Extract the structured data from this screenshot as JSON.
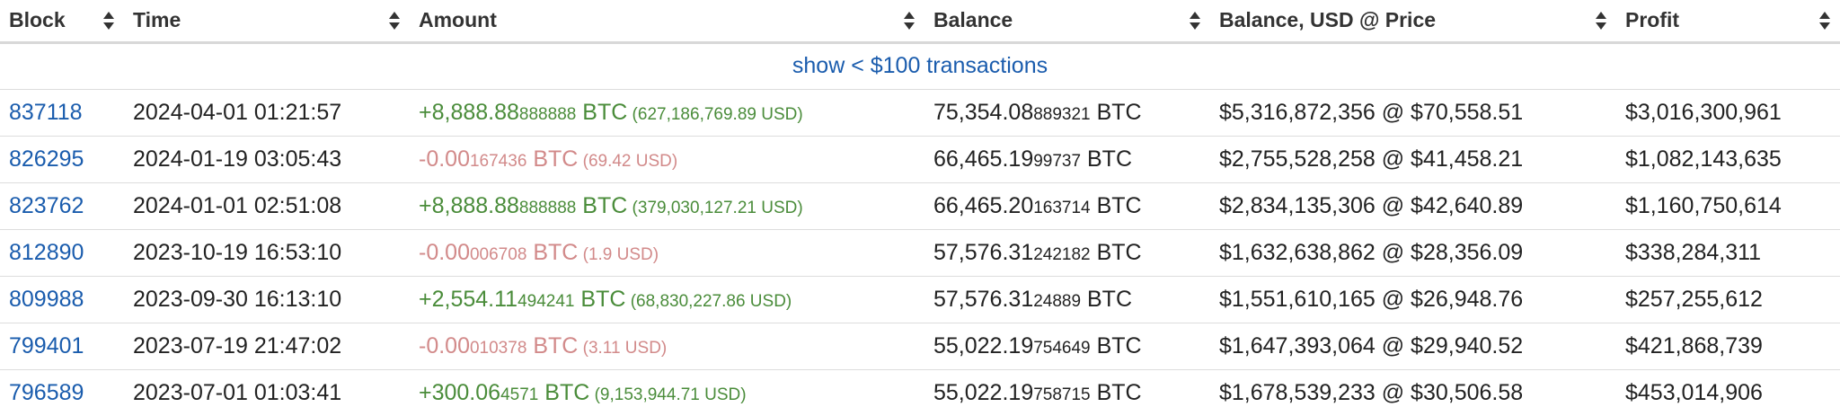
{
  "headers": [
    {
      "label": "Block"
    },
    {
      "label": "Time"
    },
    {
      "label": "Amount"
    },
    {
      "label": "Balance"
    },
    {
      "label": "Balance, USD @ Price"
    },
    {
      "label": "Profit"
    }
  ],
  "sort_icon": "sort-updown-icon",
  "show_small_link": "show < $100 transactions",
  "colors": {
    "link": "#1a5cad",
    "positive": "#4a8c3a",
    "negative": "#d28a8a"
  },
  "rows": [
    {
      "block": "837118",
      "time": "2024-04-01 01:21:57",
      "amount_sign": "pos",
      "amount_main": "+8,888.88",
      "amount_small": "888888",
      "amount_unit": " BTC",
      "amount_usd": " (627,186,769.89 USD)",
      "balance_main": "75,354.08",
      "balance_small": "889321",
      "balance_unit": " BTC",
      "balance_usd": "$5,316,872,356 @ $70,558.51",
      "profit": "$3,016,300,961"
    },
    {
      "block": "826295",
      "time": "2024-01-19 03:05:43",
      "amount_sign": "neg",
      "amount_main": "-0.00",
      "amount_small": "167436",
      "amount_unit": " BTC",
      "amount_usd": " (69.42 USD)",
      "balance_main": "66,465.19",
      "balance_small": "99737",
      "balance_unit": " BTC",
      "balance_usd": "$2,755,528,258 @ $41,458.21",
      "profit": "$1,082,143,635"
    },
    {
      "block": "823762",
      "time": "2024-01-01 02:51:08",
      "amount_sign": "pos",
      "amount_main": "+8,888.88",
      "amount_small": "888888",
      "amount_unit": " BTC",
      "amount_usd": " (379,030,127.21 USD)",
      "balance_main": "66,465.20",
      "balance_small": "163714",
      "balance_unit": " BTC",
      "balance_usd": "$2,834,135,306 @ $42,640.89",
      "profit": "$1,160,750,614"
    },
    {
      "block": "812890",
      "time": "2023-10-19 16:53:10",
      "amount_sign": "neg",
      "amount_main": "-0.00",
      "amount_small": "006708",
      "amount_unit": " BTC",
      "amount_usd": " (1.9 USD)",
      "balance_main": "57,576.31",
      "balance_small": "242182",
      "balance_unit": " BTC",
      "balance_usd": "$1,632,638,862 @ $28,356.09",
      "profit": "$338,284,311"
    },
    {
      "block": "809988",
      "time": "2023-09-30 16:13:10",
      "amount_sign": "pos",
      "amount_main": "+2,554.11",
      "amount_small": "494241",
      "amount_unit": " BTC",
      "amount_usd": " (68,830,227.86 USD)",
      "balance_main": "57,576.31",
      "balance_small": "24889",
      "balance_unit": " BTC",
      "balance_usd": "$1,551,610,165 @ $26,948.76",
      "profit": "$257,255,612"
    },
    {
      "block": "799401",
      "time": "2023-07-19 21:47:02",
      "amount_sign": "neg",
      "amount_main": "-0.00",
      "amount_small": "010378",
      "amount_unit": " BTC",
      "amount_usd": " (3.11 USD)",
      "balance_main": "55,022.19",
      "balance_small": "754649",
      "balance_unit": " BTC",
      "balance_usd": "$1,647,393,064 @ $29,940.52",
      "profit": "$421,868,739"
    },
    {
      "block": "796589",
      "time": "2023-07-01 01:03:41",
      "amount_sign": "pos",
      "amount_main": "+300.06",
      "amount_small": "4571",
      "amount_unit": " BTC",
      "amount_usd": " (9,153,944.71 USD)",
      "balance_main": "55,022.19",
      "balance_small": "758715",
      "balance_unit": " BTC",
      "balance_usd": "$1,678,539,233 @ $30,506.58",
      "profit": "$453,014,906"
    }
  ]
}
